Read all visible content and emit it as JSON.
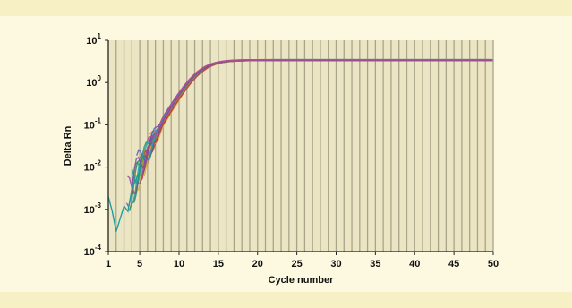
{
  "chart_data": {
    "type": "line",
    "title": "",
    "xlabel": "Cycle number",
    "ylabel": "Delta Rn",
    "x_ticks": [
      1,
      5,
      10,
      15,
      20,
      25,
      30,
      35,
      40,
      45,
      50
    ],
    "y_tick_base": "10",
    "y_tick_exponents": [
      1,
      0,
      -1,
      -2,
      -3,
      -4
    ],
    "y_tick_labels": [
      "10^1",
      "10^0",
      "10^-1",
      "10^-2",
      "10^-3",
      "10^-4"
    ],
    "x_range": [
      1,
      50
    ],
    "y_range": [
      0.0001,
      10
    ],
    "y_scale": "log",
    "grid": "vertical, every cycle",
    "n_series": 24,
    "curve_model": {
      "description": "Sigmoidal amplification curves (plateau ≈ 3.4, midpoint ≈ cycle 12.5)",
      "plateau": 3.4,
      "midpoint_cycle": 12.5,
      "slope_per_cycle": 0.73
    },
    "approx_points": {
      "x": [
        4,
        6,
        8,
        10,
        12,
        14,
        16,
        18,
        20,
        25,
        30,
        40,
        50
      ],
      "y": [
        0.0012,
        0.006,
        0.025,
        0.1,
        0.4,
        1.2,
        2.3,
        2.9,
        3.2,
        3.35,
        3.4,
        3.4,
        3.4
      ]
    },
    "colors": [
      "#1f9ea3",
      "#3a8fbf",
      "#8e4a9e",
      "#c7458a",
      "#e0783a",
      "#d8b43a",
      "#6fae3c",
      "#2f7f5a",
      "#4b5fb8",
      "#b23a48"
    ]
  }
}
